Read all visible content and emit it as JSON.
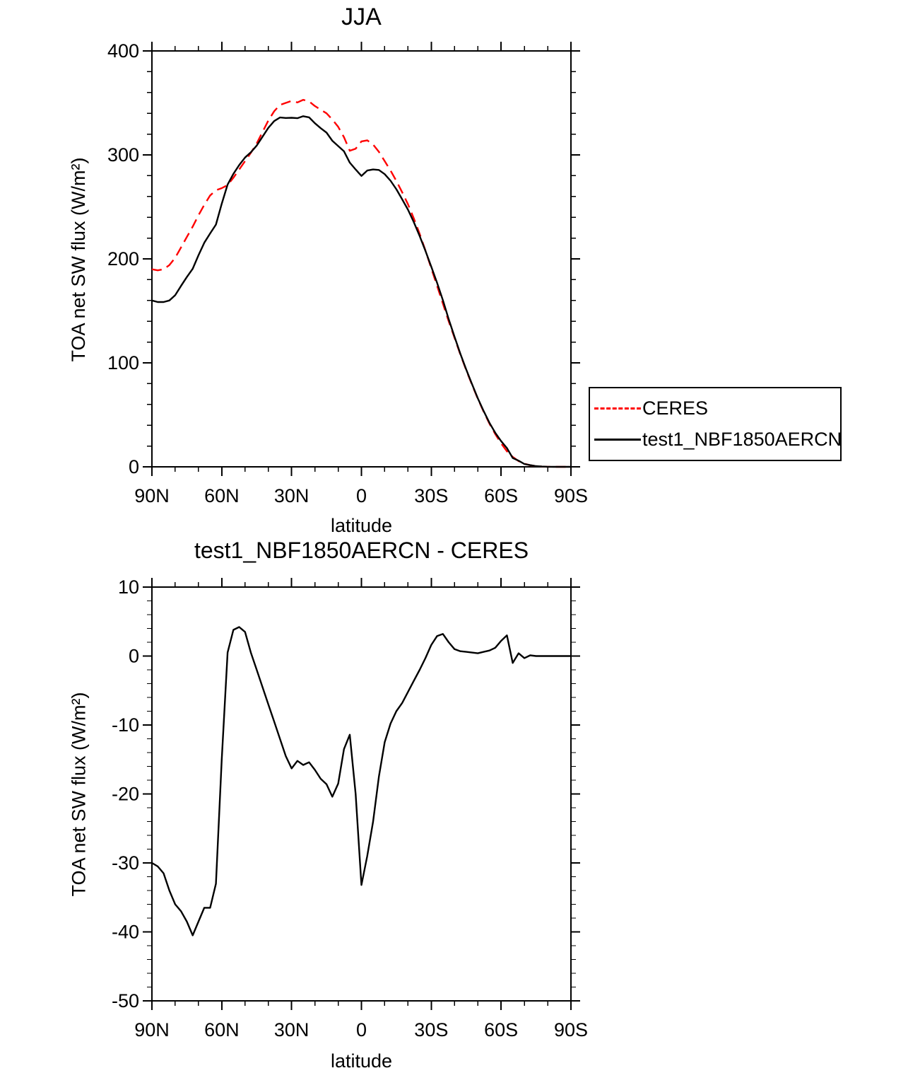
{
  "background": "#ffffff",
  "chart_data": [
    {
      "type": "line",
      "title": "JJA",
      "xlabel": "latitude",
      "ylabel": "TOA net SW flux (W/m²)",
      "xlim": [
        90,
        -90
      ],
      "ylim": [
        0,
        400
      ],
      "grid": false,
      "legend_position": "outside-right",
      "xticks": {
        "values": [
          90,
          60,
          30,
          0,
          -30,
          -60,
          -90
        ],
        "labels": [
          "90N",
          "60N",
          "30N",
          "0",
          "30S",
          "60S",
          "90S"
        ],
        "minor_step": 10
      },
      "yticks": {
        "values": [
          0,
          100,
          200,
          300,
          400
        ],
        "labels": [
          "0",
          "100",
          "200",
          "300",
          "400"
        ],
        "minor_step": 20
      },
      "x": [
        90,
        87.5,
        85,
        82.5,
        80,
        77.5,
        75,
        72.5,
        70,
        67.5,
        65,
        62.5,
        60,
        57.5,
        55,
        52.5,
        50,
        47.5,
        45,
        42.5,
        40,
        37.5,
        35,
        32.5,
        30,
        27.5,
        25,
        22.5,
        20,
        17.5,
        15,
        12.5,
        10,
        7.5,
        5,
        2.5,
        0,
        -2.5,
        -5,
        -7.5,
        -10,
        -12.5,
        -15,
        -17.5,
        -20,
        -22.5,
        -25,
        -27.5,
        -30,
        -32.5,
        -35,
        -37.5,
        -40,
        -42.5,
        -45,
        -47.5,
        -50,
        -52.5,
        -55,
        -57.5,
        -60,
        -62.5,
        -65,
        -67.5,
        -70,
        -72.5,
        -75,
        -77.5,
        -80,
        -82.5,
        -85,
        -87.5,
        -90
      ],
      "series": [
        {
          "name": "CERES",
          "color": "#ff0000",
          "style": "dashed",
          "values": [
            190,
            189,
            190,
            194,
            201,
            211,
            221,
            231,
            242,
            252,
            261,
            266,
            268,
            271,
            278,
            286,
            294,
            302,
            311,
            322,
            333,
            342,
            348,
            350,
            352,
            350.5,
            353,
            351.5,
            347,
            343.5,
            340,
            334,
            327,
            317,
            304,
            306,
            313,
            314,
            310,
            303,
            294,
            285,
            275,
            264,
            252.5,
            239,
            224,
            208,
            191,
            174,
            157,
            140,
            124,
            108,
            93,
            79,
            65.5,
            53,
            41.5,
            31.5,
            22.5,
            15,
            9.5,
            5.5,
            3,
            1.5,
            0.7,
            0.3,
            0.1,
            0,
            0,
            0,
            0
          ]
        },
        {
          "name": "test1_NBF1850AERCN",
          "color": "#000000",
          "style": "solid",
          "values": [
            160,
            158.5,
            158.5,
            160,
            165,
            174,
            182.5,
            190.5,
            203.5,
            215.5,
            224.5,
            233,
            253,
            271.5,
            281.8,
            290.2,
            297.5,
            302.5,
            309,
            317.5,
            326,
            332.5,
            336,
            335.5,
            335.7,
            335.3,
            337.2,
            336.1,
            330.5,
            325.7,
            321.4,
            313.6,
            308.5,
            303.5,
            292.6,
            286,
            279.8,
            285,
            286,
            285.5,
            281.5,
            275.2,
            267,
            257.2,
            247.3,
            235.4,
            222,
            207.7,
            192.6,
            176.9,
            160.2,
            142,
            125,
            108.7,
            93.6,
            79.5,
            65.9,
            53.6,
            42.3,
            32.7,
            24.7,
            18,
            8.5,
            5.9,
            2.7,
            1.6,
            0.7,
            0.3,
            0.1,
            0,
            0,
            0,
            0
          ]
        }
      ]
    },
    {
      "type": "line",
      "title": "test1_NBF1850AERCN - CERES",
      "xlabel": "latitude",
      "ylabel": "TOA net SW flux (W/m²)",
      "xlim": [
        90,
        -90
      ],
      "ylim": [
        -50,
        10
      ],
      "grid": false,
      "xticks": {
        "values": [
          90,
          60,
          30,
          0,
          -30,
          -60,
          -90
        ],
        "labels": [
          "90N",
          "60N",
          "30N",
          "0",
          "30S",
          "60S",
          "90S"
        ],
        "minor_step": 10
      },
      "yticks": {
        "values": [
          -50,
          -40,
          -30,
          -20,
          -10,
          0,
          10
        ],
        "labels": [
          "-50",
          "-40",
          "-30",
          "-20",
          "-10",
          "0",
          "10"
        ],
        "minor_step": 2
      },
      "x": [
        90,
        87.5,
        85,
        82.5,
        80,
        77.5,
        75,
        72.5,
        70,
        67.5,
        65,
        62.5,
        60,
        57.5,
        55,
        52.5,
        50,
        47.5,
        45,
        42.5,
        40,
        37.5,
        35,
        32.5,
        30,
        27.5,
        25,
        22.5,
        20,
        17.5,
        15,
        12.5,
        10,
        7.5,
        5,
        2.5,
        0,
        -2.5,
        -5,
        -7.5,
        -10,
        -12.5,
        -15,
        -17.5,
        -20,
        -22.5,
        -25,
        -27.5,
        -30,
        -32.5,
        -35,
        -37.5,
        -40,
        -42.5,
        -45,
        -47.5,
        -50,
        -52.5,
        -55,
        -57.5,
        -60,
        -62.5,
        -65,
        -67.5,
        -70,
        -72.5,
        -75,
        -77.5,
        -80,
        -82.5,
        -85,
        -87.5,
        -90
      ],
      "series": [
        {
          "name": "test1_NBF1850AERCN - CERES",
          "color": "#000000",
          "style": "solid",
          "values": [
            -30,
            -30.5,
            -31.5,
            -34,
            -36,
            -37,
            -38.5,
            -40.5,
            -38.5,
            -36.5,
            -36.5,
            -33,
            -15,
            0.5,
            3.8,
            4.2,
            3.5,
            0.5,
            -2,
            -4.5,
            -7,
            -9.5,
            -12,
            -14.5,
            -16.3,
            -15.2,
            -15.8,
            -15.4,
            -16.5,
            -17.8,
            -18.6,
            -20.4,
            -18.5,
            -13.5,
            -11.4,
            -20,
            -33.2,
            -29,
            -24,
            -17.5,
            -12.5,
            -9.8,
            -8,
            -6.8,
            -5.2,
            -3.6,
            -2,
            -0.3,
            1.6,
            2.9,
            3.2,
            2,
            1,
            0.7,
            0.6,
            0.5,
            0.4,
            0.6,
            0.8,
            1.2,
            2.2,
            3,
            -1,
            0.4,
            -0.3,
            0.1,
            0,
            0,
            0,
            0,
            0,
            0,
            0
          ]
        }
      ]
    }
  ]
}
